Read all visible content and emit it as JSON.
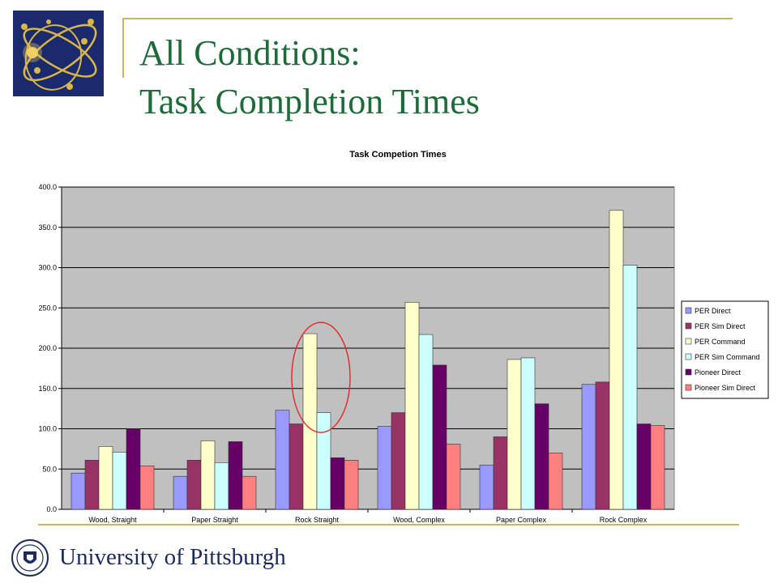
{
  "slide": {
    "title_line_1": "All Conditions:",
    "title_line_2": "Task Completion Times",
    "footer_text": "University of Pittsburgh",
    "accent_color": "#c8b560",
    "title_color": "#1e6b3a"
  },
  "chart_data": {
    "type": "bar",
    "title": "Task Competion Times",
    "xlabel": "",
    "ylabel": "",
    "ylim": [
      0,
      400
    ],
    "yticks": [
      "0.0",
      "50.0",
      "100.0",
      "150.0",
      "200.0",
      "250.0",
      "300.0",
      "350.0",
      "400.0"
    ],
    "grid": true,
    "legend_position": "right",
    "plot_background": "#c0c0c0",
    "categories": [
      "Wood, Straight",
      "Paper Straight",
      "Rock Straight",
      "Wood, Complex",
      "Paper Complex",
      "Rock Complex"
    ],
    "series": [
      {
        "name": "PER Direct",
        "color": "#9999ff",
        "values": [
          45,
          41,
          123,
          103,
          55,
          155
        ]
      },
      {
        "name": "PER Sim Direct",
        "color": "#993366",
        "values": [
          61,
          61,
          106,
          120,
          90,
          158
        ]
      },
      {
        "name": "PER Command",
        "color": "#ffffcc",
        "values": [
          78,
          85,
          218,
          257,
          186,
          371
        ]
      },
      {
        "name": "PER Sim Command",
        "color": "#ccffff",
        "values": [
          71,
          58,
          120,
          217,
          188,
          303
        ]
      },
      {
        "name": "Pioneer Direct",
        "color": "#660066",
        "values": [
          100,
          84,
          64,
          179,
          131,
          106
        ]
      },
      {
        "name": "Pioneer Sim Direct",
        "color": "#ff8080",
        "values": [
          54,
          41,
          61,
          81,
          70,
          104
        ]
      }
    ],
    "annotation": {
      "shape": "ellipse",
      "color": "#e03030",
      "category": "Rock Straight"
    }
  }
}
